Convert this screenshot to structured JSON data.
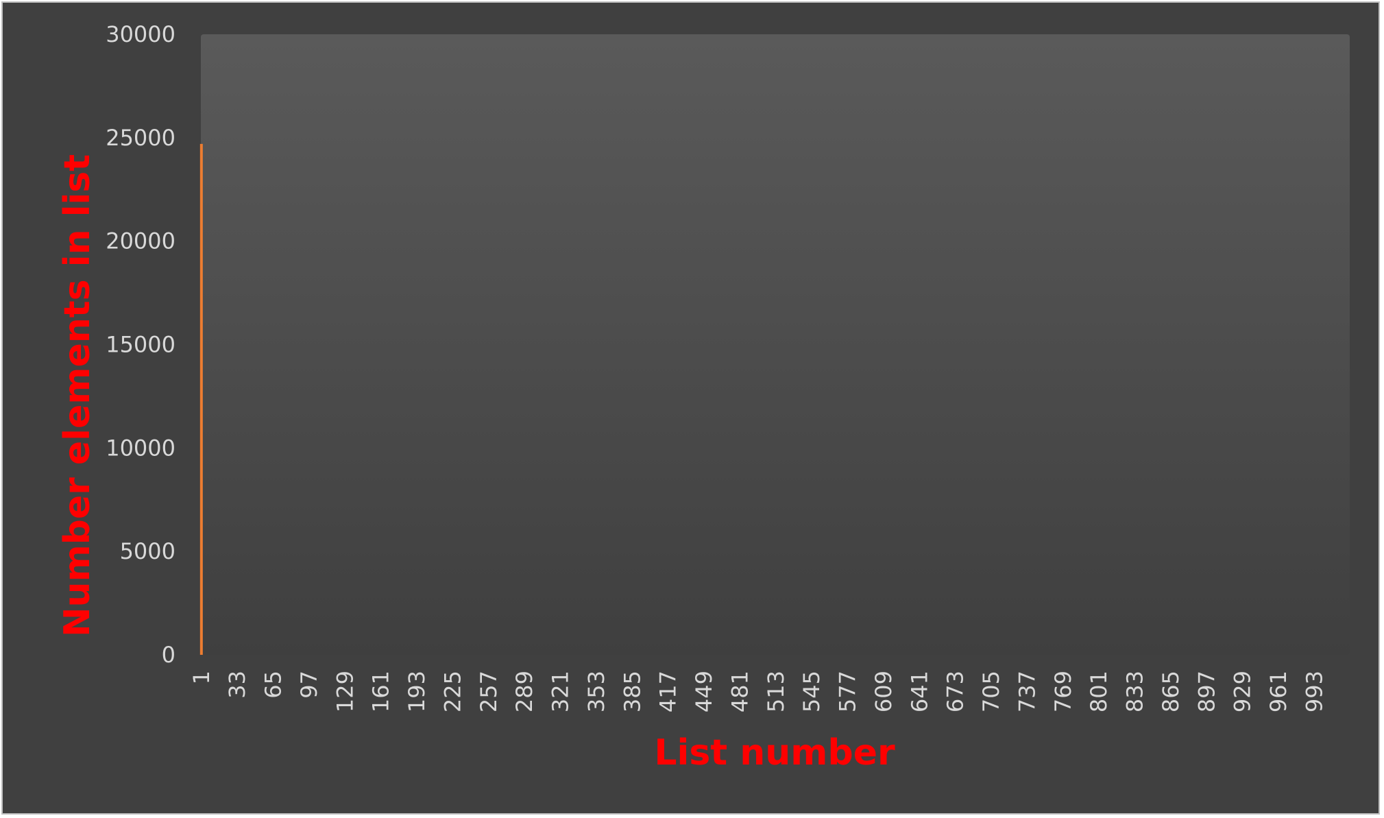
{
  "chart_data": {
    "type": "bar",
    "title": "",
    "xlabel": "List number",
    "ylabel": "Number elements in list",
    "ylim": [
      0,
      30000
    ],
    "y_ticks": [
      "0",
      "5000",
      "10000",
      "15000",
      "20000",
      "25000",
      "30000"
    ],
    "x_tick_labels": [
      "1",
      "33",
      "65",
      "97",
      "129",
      "161",
      "193",
      "225",
      "257",
      "289",
      "321",
      "353",
      "385",
      "417",
      "449",
      "481",
      "513",
      "545",
      "577",
      "609",
      "641",
      "673",
      "705",
      "737",
      "769",
      "801",
      "833",
      "865",
      "897",
      "929",
      "961",
      "993"
    ],
    "x_range": [
      1,
      1024
    ],
    "grid": false,
    "legend": "none",
    "series": [
      {
        "x": [
          1
        ],
        "values": [
          24700
        ]
      }
    ],
    "colors": {
      "bar": "#ed7d31",
      "background": "#404040",
      "plot_area_top": "#595959",
      "axis_title": "#ff0000",
      "tick_label": "#d9d9d9"
    }
  }
}
